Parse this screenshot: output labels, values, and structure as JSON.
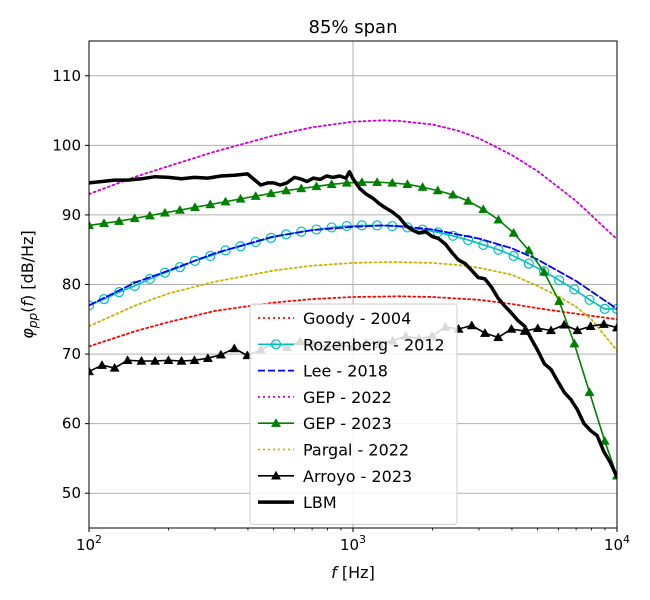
{
  "chart_data": {
    "type": "line",
    "title": "85% span",
    "xlabel": "f [Hz]",
    "ylabel": "φpp(f) [dB/Hz]",
    "xscale": "log",
    "xlim": [
      100,
      10000
    ],
    "ylim": [
      45,
      115
    ],
    "x_ticks": [
      100,
      1000,
      10000
    ],
    "x_tick_labels": [
      {
        "base": "10",
        "exp": "2"
      },
      {
        "base": "10",
        "exp": "3"
      },
      {
        "base": "10",
        "exp": "4"
      }
    ],
    "y_ticks": [
      50,
      60,
      70,
      80,
      90,
      100,
      110
    ],
    "y_tick_labels": [
      "50",
      "60",
      "70",
      "80",
      "90",
      "100",
      "110"
    ],
    "grid": true,
    "legend_position": "lower-center",
    "series": [
      {
        "name": "Goody - 2004",
        "color": "#ff0000",
        "style": "dotted",
        "marker": "none",
        "x": [
          100,
          150,
          200,
          300,
          500,
          700,
          1000,
          1500,
          2000,
          3000,
          4000,
          5000,
          7000,
          10000
        ],
        "y": [
          71.1,
          73.3,
          74.6,
          76.2,
          77.4,
          77.9,
          78.2,
          78.3,
          78.2,
          77.8,
          77.2,
          76.6,
          75.8,
          75.0
        ]
      },
      {
        "name": "Rozenberg - 2012",
        "color": "#00bfbf",
        "style": "solid",
        "marker": "open-circle",
        "x": [
          100,
          114,
          130,
          149,
          170,
          194,
          221,
          252,
          288,
          329,
          375,
          428,
          489,
          558,
          637,
          727,
          830,
          947,
          1081,
          1234,
          1409,
          1608,
          1835,
          2095,
          2391,
          2730,
          3116,
          3556,
          4060,
          4634,
          5290,
          6038,
          6893,
          7868,
          8982,
          10000
        ],
        "y": [
          77.0,
          77.9,
          78.9,
          79.8,
          80.8,
          81.7,
          82.5,
          83.4,
          84.1,
          84.9,
          85.5,
          86.1,
          86.7,
          87.2,
          87.6,
          87.9,
          88.2,
          88.4,
          88.5,
          88.5,
          88.4,
          88.2,
          87.9,
          87.5,
          87.0,
          86.4,
          85.7,
          85.0,
          84.1,
          83.0,
          81.9,
          80.6,
          79.3,
          77.8,
          76.5,
          76.5
        ]
      },
      {
        "name": "Lee - 2018",
        "color": "#0000ff",
        "style": "dashed",
        "marker": "none",
        "x": [
          100,
          150,
          200,
          300,
          500,
          700,
          1000,
          1300,
          1500,
          2000,
          3000,
          4000,
          5000,
          7000,
          10000
        ],
        "y": [
          77.0,
          80.3,
          82.0,
          84.5,
          86.9,
          87.8,
          88.3,
          88.5,
          88.4,
          87.9,
          86.6,
          85.2,
          83.6,
          80.5,
          76.5
        ]
      },
      {
        "name": "GEP - 2022",
        "color": "#cc00cc",
        "style": "dotted",
        "marker": "none",
        "x": [
          100,
          150,
          200,
          300,
          500,
          700,
          1000,
          1300,
          1500,
          2000,
          2500,
          3000,
          4000,
          5000,
          7000,
          10000
        ],
        "y": [
          93.0,
          95.5,
          97.0,
          99.1,
          101.4,
          102.6,
          103.4,
          103.6,
          103.5,
          103.0,
          102.1,
          101.0,
          98.6,
          96.3,
          92.0,
          86.5
        ]
      },
      {
        "name": "GEP - 2023",
        "color": "#008000",
        "style": "solid",
        "marker": "triangle",
        "x": [
          100,
          114,
          130,
          149,
          170,
          194,
          221,
          252,
          288,
          329,
          375,
          428,
          489,
          558,
          637,
          727,
          830,
          947,
          1081,
          1234,
          1409,
          1608,
          1835,
          2095,
          2391,
          2730,
          3116,
          3556,
          4060,
          4634,
          5290,
          6038,
          6893,
          7868,
          8982,
          10000
        ],
        "y": [
          88.5,
          88.8,
          89.1,
          89.5,
          89.9,
          90.3,
          90.7,
          91.1,
          91.5,
          91.9,
          92.3,
          92.7,
          93.1,
          93.5,
          93.8,
          94.1,
          94.4,
          94.6,
          94.7,
          94.7,
          94.6,
          94.4,
          94.0,
          93.5,
          92.9,
          92.0,
          90.8,
          89.3,
          87.4,
          84.9,
          81.8,
          77.6,
          71.5,
          64.5,
          57.5,
          52.5
        ]
      },
      {
        "name": "Pargal - 2022",
        "color": "#c8b400",
        "style": "dotted",
        "marker": "none",
        "x": [
          100,
          150,
          200,
          300,
          500,
          700,
          1000,
          1300,
          1500,
          2000,
          2500,
          3000,
          4000,
          5000,
          6000,
          7000,
          8000,
          10000
        ],
        "y": [
          74.0,
          77.0,
          78.7,
          80.4,
          82.0,
          82.7,
          83.1,
          83.2,
          83.2,
          83.1,
          82.8,
          82.4,
          81.4,
          79.8,
          78.3,
          76.8,
          75.0,
          70.5
        ]
      },
      {
        "name": "Arroyo - 2023",
        "color": "#000000",
        "style": "solid",
        "marker": "triangle",
        "x": [
          100,
          112,
          125,
          140,
          158,
          178,
          200,
          224,
          251,
          282,
          316,
          355,
          398,
          447,
          501,
          562,
          631,
          708,
          794,
          891,
          1000,
          1122,
          1259,
          1413,
          1585,
          1778,
          1995,
          2239,
          2512,
          2818,
          3162,
          3548,
          3981,
          4467,
          5012,
          5623,
          6310,
          7079,
          7943,
          8913,
          10000
        ],
        "y": [
          67.5,
          68.4,
          68.0,
          69.1,
          69.0,
          69.0,
          69.1,
          69.0,
          69.1,
          69.4,
          69.9,
          70.8,
          69.8,
          70.6,
          71.5,
          71.0,
          71.8,
          71.5,
          71.0,
          71.4,
          71.0,
          71.6,
          71.4,
          71.9,
          72.6,
          72.2,
          72.6,
          73.9,
          73.6,
          74.1,
          73.0,
          72.4,
          73.6,
          73.3,
          73.7,
          73.4,
          74.2,
          73.4,
          74.0,
          74.3,
          73.8
        ]
      },
      {
        "name": "LBM",
        "color": "#000000",
        "style": "thick",
        "marker": "none",
        "x": [
          100,
          112,
          125,
          140,
          158,
          178,
          200,
          224,
          251,
          282,
          316,
          355,
          398,
          425,
          447,
          475,
          501,
          530,
          562,
          600,
          631,
          670,
          708,
          750,
          794,
          840,
          891,
          940,
          970,
          1000,
          1060,
          1122,
          1190,
          1259,
          1330,
          1413,
          1500,
          1585,
          1680,
          1778,
          1880,
          1995,
          2110,
          2239,
          2370,
          2512,
          2660,
          2818,
          2980,
          3162,
          3350,
          3548,
          3760,
          3981,
          4220,
          4467,
          4730,
          5012,
          5310,
          5623,
          5960,
          6310,
          6680,
          7079,
          7500,
          7943,
          8410,
          8913,
          9440,
          10000
        ],
        "y": [
          94.6,
          94.8,
          95.0,
          95.0,
          95.2,
          95.5,
          95.4,
          95.2,
          95.4,
          95.3,
          95.6,
          95.7,
          95.9,
          95.0,
          94.3,
          94.6,
          94.6,
          94.3,
          94.6,
          95.4,
          95.2,
          94.8,
          95.3,
          95.1,
          95.6,
          95.4,
          95.6,
          95.3,
          96.2,
          95.2,
          93.8,
          93.0,
          92.4,
          91.6,
          91.0,
          90.4,
          89.6,
          88.5,
          87.8,
          87.4,
          87.6,
          86.9,
          86.6,
          85.8,
          84.6,
          83.5,
          83.0,
          82.0,
          81.0,
          80.8,
          79.6,
          78.0,
          76.9,
          75.9,
          74.8,
          74.0,
          72.2,
          70.5,
          68.6,
          67.8,
          66.1,
          64.5,
          63.5,
          62.0,
          60.0,
          59.0,
          58.3,
          56.0,
          54.4,
          52.3
        ]
      }
    ]
  }
}
